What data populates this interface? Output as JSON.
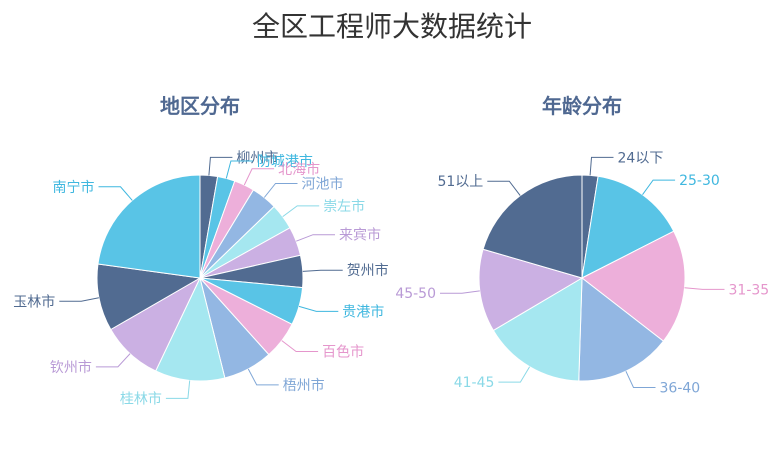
{
  "title": "全区工程师大数据统计",
  "chart_data": [
    {
      "type": "pie",
      "title": "地区分布",
      "categories": [
        "柳州市",
        "防城港市",
        "北海市",
        "河池市",
        "崇左市",
        "来宾市",
        "贺州市",
        "贵港市",
        "百色市",
        "梧州市",
        "桂林市",
        "钦州市",
        "玉林市",
        "南宁市"
      ],
      "values": [
        3,
        3,
        3.5,
        4.5,
        4.5,
        5,
        5.5,
        6.5,
        6.5,
        8.5,
        12,
        10.5,
        11.5,
        25
      ],
      "colors": [
        "#516b91",
        "#59c4e6",
        "#edafda",
        "#93b7e3",
        "#a5e7f0",
        "#cbb0e3",
        "#516b91",
        "#59c4e6",
        "#edafda",
        "#93b7e3",
        "#a5e7f0",
        "#cbb0e3",
        "#516b91",
        "#59c4e6"
      ]
    },
    {
      "type": "pie",
      "title": "年龄分布",
      "categories": [
        "24以下",
        "25-30",
        "31-35",
        "36-40",
        "41-45",
        "45-50",
        "51以上"
      ],
      "values": [
        2.5,
        15,
        18,
        15,
        16,
        13,
        20.5
      ],
      "colors": [
        "#516b91",
        "#59c4e6",
        "#edafda",
        "#93b7e3",
        "#a5e7f0",
        "#cbb0e3",
        "#516b91"
      ]
    }
  ]
}
